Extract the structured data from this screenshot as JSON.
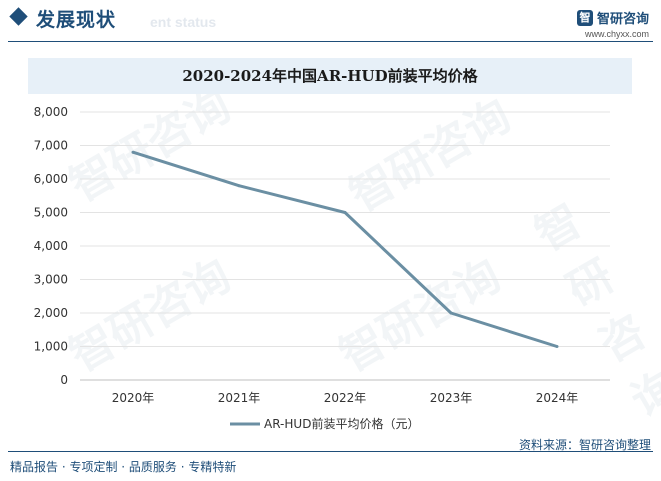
{
  "header": {
    "section_title": "发展现状",
    "section_subtitle": "ent status",
    "brand_name": "智研咨询",
    "brand_logo_glyph": "智",
    "brand_url": "www.chyxx.com"
  },
  "watermark_text": "智研咨询",
  "chart_data": {
    "type": "line",
    "title": "2020-2024年中国AR-HUD前装平均价格",
    "categories": [
      "2020年",
      "2021年",
      "2022年",
      "2023年",
      "2024年"
    ],
    "series": [
      {
        "name": "AR-HUD前装平均价格（元）",
        "values": [
          6800,
          5800,
          5000,
          2000,
          1000
        ],
        "color": "#6b8fa3"
      }
    ],
    "ylim": [
      0,
      8000
    ],
    "yticks": [
      "0",
      "1,000",
      "2,000",
      "3,000",
      "4,000",
      "5,000",
      "6,000",
      "7,000",
      "8,000"
    ],
    "grid": true,
    "legend_position": "bottom"
  },
  "footer": {
    "source_label": "资料来源：",
    "source_value": "智研咨询整理",
    "tags": "精品报告 · 专项定制 · 品质服务 · 专精特新"
  }
}
